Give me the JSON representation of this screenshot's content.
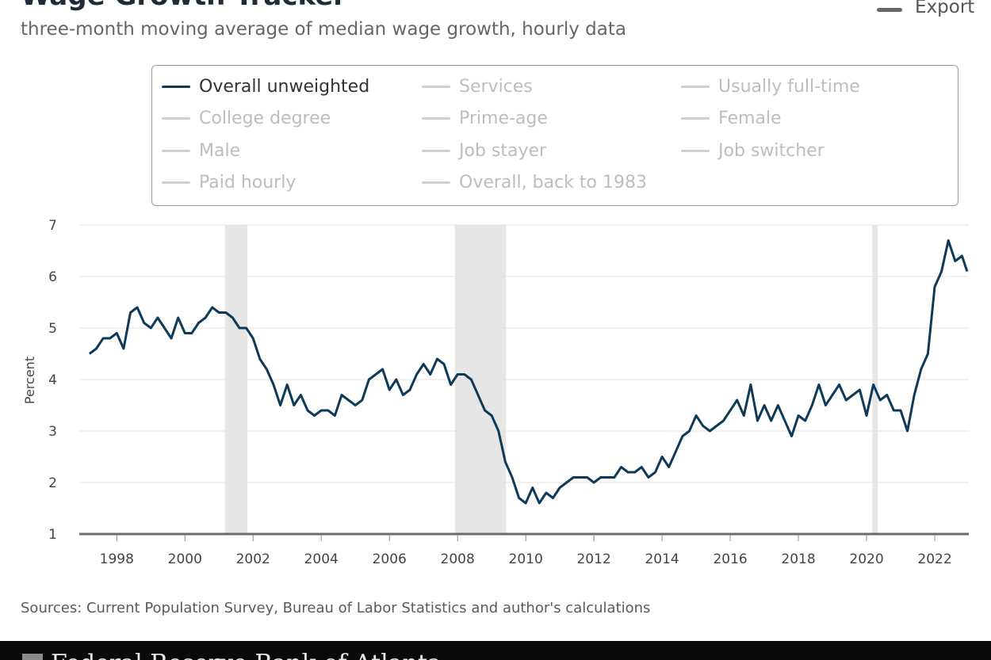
{
  "header": {
    "title": "Wage Growth Tracker",
    "subtitle": "three-month moving average of median wage growth, hourly data",
    "export_label": "Export"
  },
  "legend": {
    "items": [
      {
        "label": "Overall unweighted",
        "active": true
      },
      {
        "label": "Services",
        "active": false
      },
      {
        "label": "Usually full-time",
        "active": false
      },
      {
        "label": "College degree",
        "active": false
      },
      {
        "label": "Prime-age",
        "active": false
      },
      {
        "label": "Female",
        "active": false
      },
      {
        "label": "Male",
        "active": false
      },
      {
        "label": "Job stayer",
        "active": false
      },
      {
        "label": "Job switcher",
        "active": false
      },
      {
        "label": "Paid hourly",
        "active": false
      },
      {
        "label": "Overall, back to 1983",
        "active": false
      }
    ]
  },
  "chart_data": {
    "type": "line",
    "title": "",
    "xlabel": "",
    "ylabel": "Percent",
    "xlim": [
      1996.9,
      2023.0
    ],
    "ylim": [
      1,
      7
    ],
    "y_ticks": [
      1,
      2,
      3,
      4,
      5,
      6,
      7
    ],
    "x_ticks": [
      "1998",
      "2000",
      "2002",
      "2004",
      "2006",
      "2008",
      "2010",
      "2012",
      "2014",
      "2016",
      "2018",
      "2020",
      "2022"
    ],
    "grid": true,
    "recessions": [
      [
        2001.17,
        2001.83
      ],
      [
        2007.92,
        2009.42
      ],
      [
        2020.17,
        2020.33
      ]
    ],
    "series": [
      {
        "name": "Overall unweighted",
        "color": "#0f3a57",
        "x": [
          1997.2,
          1997.4,
          1997.6,
          1997.8,
          1998.0,
          1998.2,
          1998.4,
          1998.6,
          1998.8,
          1999.0,
          1999.2,
          1999.4,
          1999.6,
          1999.8,
          2000.0,
          2000.2,
          2000.4,
          2000.6,
          2000.8,
          2001.0,
          2001.2,
          2001.4,
          2001.6,
          2001.8,
          2002.0,
          2002.2,
          2002.4,
          2002.6,
          2002.8,
          2003.0,
          2003.2,
          2003.4,
          2003.6,
          2003.8,
          2004.0,
          2004.2,
          2004.4,
          2004.6,
          2004.8,
          2005.0,
          2005.2,
          2005.4,
          2005.6,
          2005.8,
          2006.0,
          2006.2,
          2006.4,
          2006.6,
          2006.8,
          2007.0,
          2007.2,
          2007.4,
          2007.6,
          2007.8,
          2008.0,
          2008.2,
          2008.4,
          2008.6,
          2008.8,
          2009.0,
          2009.2,
          2009.4,
          2009.6,
          2009.8,
          2010.0,
          2010.2,
          2010.4,
          2010.6,
          2010.8,
          2011.0,
          2011.2,
          2011.4,
          2011.6,
          2011.8,
          2012.0,
          2012.2,
          2012.4,
          2012.6,
          2012.8,
          2013.0,
          2013.2,
          2013.4,
          2013.6,
          2013.8,
          2014.0,
          2014.2,
          2014.4,
          2014.6,
          2014.8,
          2015.0,
          2015.2,
          2015.4,
          2015.6,
          2015.8,
          2016.0,
          2016.2,
          2016.4,
          2016.6,
          2016.8,
          2017.0,
          2017.2,
          2017.4,
          2017.6,
          2017.8,
          2018.0,
          2018.2,
          2018.4,
          2018.6,
          2018.8,
          2019.0,
          2019.2,
          2019.4,
          2019.6,
          2019.8,
          2020.0,
          2020.2,
          2020.4,
          2020.6,
          2020.8,
          2021.0,
          2021.2,
          2021.4,
          2021.6,
          2021.8,
          2022.0,
          2022.2,
          2022.4,
          2022.6,
          2022.8,
          2022.95
        ],
        "values": [
          4.5,
          4.6,
          4.8,
          4.8,
          4.9,
          4.6,
          5.3,
          5.4,
          5.1,
          5.0,
          5.2,
          5.0,
          4.8,
          5.2,
          4.9,
          4.9,
          5.1,
          5.2,
          5.4,
          5.3,
          5.3,
          5.2,
          5.0,
          5.0,
          4.8,
          4.4,
          4.2,
          3.9,
          3.5,
          3.9,
          3.5,
          3.7,
          3.4,
          3.3,
          3.4,
          3.4,
          3.3,
          3.7,
          3.6,
          3.5,
          3.6,
          4.0,
          4.1,
          4.2,
          3.8,
          4.0,
          3.7,
          3.8,
          4.1,
          4.3,
          4.1,
          4.4,
          4.3,
          3.9,
          4.1,
          4.1,
          4.0,
          3.7,
          3.4,
          3.3,
          3.0,
          2.4,
          2.1,
          1.7,
          1.6,
          1.9,
          1.6,
          1.8,
          1.7,
          1.9,
          2.0,
          2.1,
          2.1,
          2.1,
          2.0,
          2.1,
          2.1,
          2.1,
          2.3,
          2.2,
          2.2,
          2.3,
          2.1,
          2.2,
          2.5,
          2.3,
          2.6,
          2.9,
          3.0,
          3.3,
          3.1,
          3.0,
          3.1,
          3.2,
          3.4,
          3.6,
          3.3,
          3.9,
          3.2,
          3.5,
          3.2,
          3.5,
          3.2,
          2.9,
          3.3,
          3.2,
          3.5,
          3.9,
          3.5,
          3.7,
          3.9,
          3.6,
          3.7,
          3.8,
          3.3,
          3.9,
          3.6,
          3.7,
          3.4,
          3.4,
          3.0,
          3.7,
          4.2,
          4.5,
          5.8,
          6.1,
          6.7,
          6.3,
          6.4,
          6.1
        ]
      }
    ]
  },
  "sources": "Sources: Current Population Survey, Bureau of Labor Statistics and author's calculations",
  "footer": {
    "text": "Federal Reserve Bank of Atlanta"
  }
}
